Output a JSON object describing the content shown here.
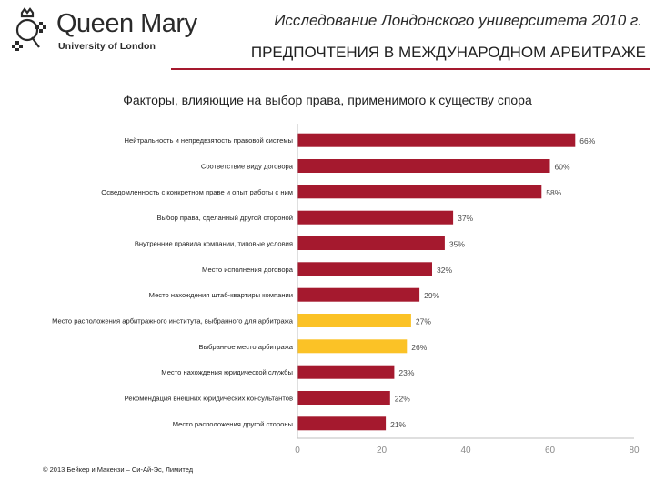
{
  "logo": {
    "name": "Queen Mary",
    "sub": "University of London"
  },
  "header": {
    "title": "Исследование Лондонского университета 2010 г.",
    "subtitle": "ПРЕДПОЧТЕНИЯ В МЕЖДУНАРОДНОМ АРБИТРАЖЕ"
  },
  "colors": {
    "accent": "#a5192e",
    "highlight": "#fbc226",
    "bar_default": "#a5192e"
  },
  "chart_data": {
    "type": "bar",
    "orientation": "horizontal",
    "title": "Факторы, влияющие на выбор права, применимого к существу спора",
    "categories": [
      "Нейтральность и непредвзятость правовой системы",
      "Соответствие виду договора",
      "Осведомленность с конкретном праве и опыт работы с ним",
      "Выбор права, сделанный другой стороной",
      "Внутренние правила компании, типовые условия",
      "Место исполнения договора",
      "Место нахождения штаб-квартиры компании",
      "Место расположения арбитражного института, выбранного для арбитража",
      "Выбранное место арбитража",
      "Место нахождения юридической службы",
      "Рекомендация внешних юридических консультантов",
      "Место расположения другой стороны"
    ],
    "values": [
      66,
      60,
      58,
      37,
      35,
      32,
      29,
      27,
      26,
      23,
      22,
      21
    ],
    "value_labels": [
      "66%",
      "60%",
      "58%",
      "37%",
      "35%",
      "32%",
      "29%",
      "27%",
      "26%",
      "23%",
      "22%",
      "21%"
    ],
    "highlighted": [
      false,
      false,
      false,
      false,
      false,
      false,
      false,
      true,
      true,
      false,
      false,
      false
    ],
    "xlim": [
      0,
      80
    ],
    "xticks": [
      "0",
      "20",
      "40",
      "60",
      "80"
    ],
    "grid": false,
    "legend": "none"
  },
  "footer": {
    "copyright": "© 2013 Бейкер и Макензи – Си-Ай-Эс, Лимитед"
  }
}
